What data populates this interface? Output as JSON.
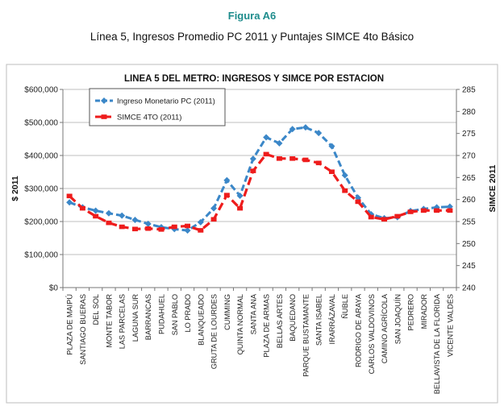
{
  "figure_label": "Figura A6",
  "figure_caption": "Línea 5, Ingresos Promedio PC 2011 y Puntajes SIMCE 4to Básico",
  "chart_data": {
    "type": "line",
    "title": "LINEA 5 DEL METRO: INGRESOS Y SIMCE POR ESTACION",
    "ylabel_left": "$ 2011",
    "ylabel_right": "SIMCE 2011",
    "categories": [
      "PLAZA DE MAIPÚ",
      "SANTIAGO BUERAS",
      "DEL SOL",
      "MONTE TABOR",
      "LAS PARCELAS",
      "LAGUNA SUR",
      "BARRANCAS",
      "PUDAHUEL",
      "SAN PABLO",
      "LO PRADO",
      "BLANQUEADO",
      "GRUTA DE LOURDES",
      "CUMMING",
      "QUINTA NORMAL",
      "SANTA ANA",
      "PLAZA DE ARMAS",
      "BELLAS ARTES",
      "BAQUEDANO",
      "PARQUE BUSTAMANTE",
      "SANTA ISABEL",
      "IRARRÁZAVAL",
      "ÑUBLE",
      "RODRIGO DE ARAYA",
      "CARLOS VALDOVINOS",
      "CAMINO AGRÍCOLA",
      "SAN JOAQUÍN",
      "PEDRERO",
      "MIRADOR",
      "BELLAVISTA DE LA FLORIDA",
      "VICENTE VALDÉS"
    ],
    "ylim_left": [
      0,
      600000
    ],
    "yticks_left": [
      "$0",
      "$100,000",
      "$200,000",
      "$300,000",
      "$400,000",
      "$500,000",
      "$600,000"
    ],
    "ylim_right": [
      240,
      285
    ],
    "yticks_right": [
      "240",
      "245",
      "250",
      "255",
      "260",
      "265",
      "270",
      "275",
      "280",
      "285"
    ],
    "series": [
      {
        "name": "Ingreso Monetario PC (2011)",
        "axis": "left",
        "color": "#3b87c8",
        "values": [
          258000,
          243000,
          233000,
          225000,
          218000,
          205000,
          193000,
          183000,
          177000,
          173000,
          198000,
          240000,
          325000,
          278000,
          390000,
          455000,
          437000,
          480000,
          485000,
          468000,
          428000,
          340000,
          272000,
          222000,
          210000,
          213000,
          232000,
          238000,
          243000,
          245000
        ]
      },
      {
        "name": "SIMCE 4TO (2011)",
        "axis": "right",
        "color": "#ee1c1c",
        "values": [
          260.8,
          258.0,
          256.2,
          254.7,
          253.8,
          253.3,
          253.4,
          253.2,
          253.8,
          254.0,
          253.0,
          255.5,
          261.0,
          258.0,
          266.5,
          270.3,
          269.3,
          269.3,
          269.0,
          268.3,
          266.3,
          262.0,
          259.5,
          256.0,
          255.5,
          256.2,
          257.2,
          257.5,
          257.5,
          257.5
        ]
      }
    ]
  }
}
